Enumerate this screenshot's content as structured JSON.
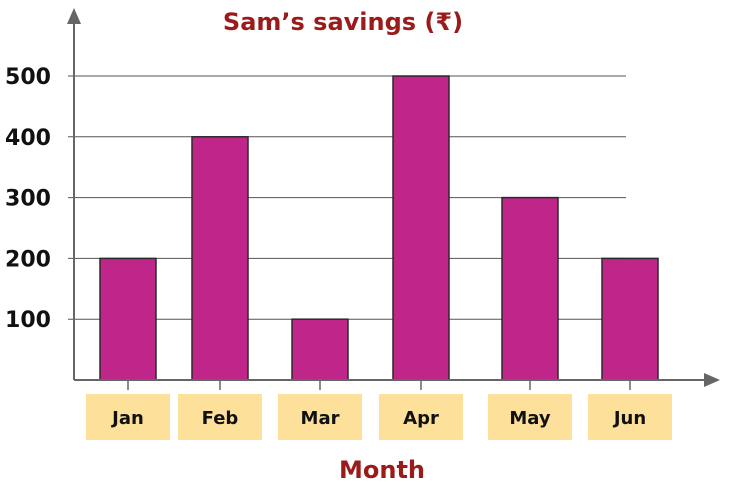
{
  "chart_data": {
    "type": "bar",
    "title": "Sam’s savings (₹)",
    "xlabel": "Month",
    "ylabel": "",
    "categories": [
      "Jan",
      "Feb",
      "Mar",
      "Apr",
      "May",
      "Jun"
    ],
    "values": [
      200,
      400,
      100,
      500,
      300,
      200
    ],
    "yticks": [
      "100",
      "200",
      "300",
      "400",
      "500"
    ],
    "ylim": [
      0,
      500
    ],
    "grid": true,
    "legend": "none",
    "colors": {
      "bar_fill": "#c0258a",
      "bar_stroke": "#2a2a2a",
      "title": "#9b1a1a",
      "label_box": "#fde09a",
      "grid": "#555555",
      "axis": "#666666"
    }
  }
}
